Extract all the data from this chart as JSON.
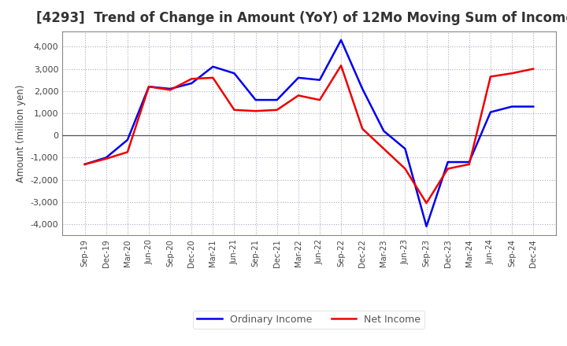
{
  "title": "[4293]  Trend of Change in Amount (YoY) of 12Mo Moving Sum of Incomes",
  "ylabel": "Amount (million yen)",
  "background_color": "#ffffff",
  "plot_bg_color": "#ffffff",
  "grid_color": "#aaaacc",
  "x_labels": [
    "Sep-19",
    "Dec-19",
    "Mar-20",
    "Jun-20",
    "Sep-20",
    "Dec-20",
    "Mar-21",
    "Jun-21",
    "Sep-21",
    "Dec-21",
    "Mar-22",
    "Jun-22",
    "Sep-22",
    "Dec-22",
    "Mar-23",
    "Jun-23",
    "Sep-23",
    "Dec-23",
    "Mar-24",
    "Jun-24",
    "Sep-24",
    "Dec-24"
  ],
  "ordinary_income": [
    -1300,
    -1000,
    -200,
    2200,
    2100,
    2350,
    3100,
    2800,
    1600,
    1600,
    2600,
    2500,
    4300,
    2100,
    200,
    -600,
    -4100,
    -1200,
    -1200,
    1050,
    1300,
    1300
  ],
  "net_income": [
    -1300,
    -1050,
    -750,
    2200,
    2050,
    2550,
    2600,
    1150,
    1100,
    1150,
    1800,
    1600,
    3150,
    300,
    -600,
    -1500,
    -3050,
    -1500,
    -1300,
    2650,
    2800,
    3000
  ],
  "ordinary_color": "#0000ee",
  "net_color": "#ee0000",
  "ylim": [
    -4500,
    4700
  ],
  "yticks": [
    -4000,
    -3000,
    -2000,
    -1000,
    0,
    1000,
    2000,
    3000,
    4000
  ],
  "line_width": 1.8,
  "title_color": "#333333",
  "title_fontsize": 12,
  "tick_color": "#444444",
  "spine_color": "#888888",
  "zero_line_color": "#555555",
  "legend_text_color": "#555555"
}
